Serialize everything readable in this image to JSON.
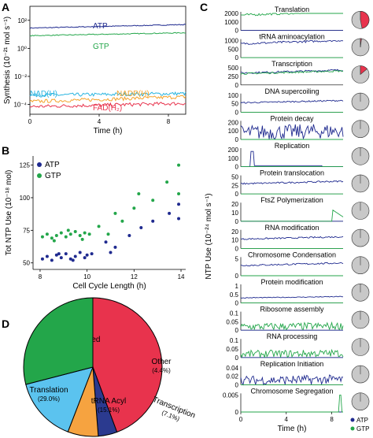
{
  "colors": {
    "atp": "#1f2a8f",
    "gtp": "#23a64a",
    "nadh": "#27b4e0",
    "nadph": "#f4a22a",
    "fadh2": "#e8334d",
    "red": "#e8334d",
    "green": "#23a64a",
    "blue": "#2b3a8f",
    "sky": "#5bc3ef",
    "orange": "#f6a340",
    "pie_gray": "#c8c8c8"
  },
  "panels": {
    "a": "A",
    "b": "B",
    "c": "C",
    "d": "D"
  },
  "chart_data": [
    {
      "id": "A",
      "type": "line",
      "scale": "log",
      "ylabel": "Synthesis (10⁻²¹ mol s⁻¹)",
      "xlabel": "Time (h)",
      "xlim": [
        0,
        9
      ],
      "ylim": [
        2e-05,
        1000
      ],
      "xticks": [
        "0",
        "4",
        "8"
      ],
      "yticks": [
        "10²",
        "10⁰",
        "10⁻²",
        "10⁻⁴"
      ],
      "series": [
        {
          "name": "ATP",
          "color_key": "atp",
          "start": 28,
          "end": 50
        },
        {
          "name": "GTP",
          "color_key": "gtp",
          "start": 8,
          "end": 13
        },
        {
          "name": "NAD(H)",
          "color_key": "nadh",
          "start": 0.00045,
          "end": 0.0006
        },
        {
          "name": "NADP(H)",
          "color_key": "nadph",
          "start": 0.00016,
          "end": 0.00035
        },
        {
          "name": "FAD(H₂)",
          "color_key": "fadh2",
          "start": 7e-05,
          "end": 0.00012
        }
      ]
    },
    {
      "id": "B",
      "type": "scatter",
      "ylabel": "Tot NTP Use (10⁻¹⁸ mol)",
      "xlabel": "Cell Cycle Length (h)",
      "xlim": [
        7.7,
        14.2
      ],
      "ylim": [
        45,
        132
      ],
      "xticks": [
        8,
        10,
        12,
        14
      ],
      "yticks": [
        50,
        75,
        100,
        125
      ],
      "series": [
        {
          "name": "ATP",
          "color_key": "atp",
          "points": [
            [
              8.1,
              53
            ],
            [
              8.3,
              55
            ],
            [
              8.5,
              52
            ],
            [
              8.7,
              56
            ],
            [
              8.9,
              54
            ],
            [
              9.1,
              57
            ],
            [
              9.3,
              53
            ],
            [
              9.5,
              55
            ],
            [
              9.7,
              58
            ],
            [
              9.9,
              54
            ],
            [
              10.0,
              56
            ],
            [
              10.2,
              57
            ],
            [
              9.4,
              52
            ],
            [
              8.8,
              57
            ],
            [
              10.8,
              66
            ],
            [
              11.0,
              58
            ],
            [
              11.2,
              62
            ],
            [
              11.8,
              71
            ],
            [
              12.3,
              77
            ],
            [
              12.8,
              82
            ],
            [
              13.5,
              88
            ],
            [
              13.9,
              95
            ],
            [
              13.9,
              84
            ]
          ]
        },
        {
          "name": "GTP",
          "color_key": "gtp",
          "points": [
            [
              8.1,
              70
            ],
            [
              8.3,
              72
            ],
            [
              8.5,
              69
            ],
            [
              8.7,
              71
            ],
            [
              8.9,
              73
            ],
            [
              9.1,
              70
            ],
            [
              9.3,
              72
            ],
            [
              9.5,
              74
            ],
            [
              9.7,
              71
            ],
            [
              9.9,
              73
            ],
            [
              10.1,
              72
            ],
            [
              8.6,
              67
            ],
            [
              9.2,
              75
            ],
            [
              9.8,
              68
            ],
            [
              10.5,
              78
            ],
            [
              10.9,
              72
            ],
            [
              11.2,
              88
            ],
            [
              11.5,
              82
            ],
            [
              12.0,
              92
            ],
            [
              12.2,
              103
            ],
            [
              12.8,
              98
            ],
            [
              13.4,
              112
            ],
            [
              13.9,
              125
            ],
            [
              13.9,
              103
            ]
          ]
        }
      ]
    },
    {
      "id": "C",
      "type": "line",
      "ylabel": "NTP Use (10⁻²⁴ mol s⁻¹)",
      "xlabel": "Time (h)",
      "xticks": [
        "0",
        "4",
        "8"
      ],
      "legend": [
        "ATP",
        "GTP"
      ],
      "rows": [
        {
          "name": "Translation",
          "yticks": [
            "2000",
            "1000",
            "0"
          ],
          "atp": 0,
          "gtp": 1800,
          "pie_atp": 0.02,
          "pie_gtp": 0.45
        },
        {
          "name": "tRNA aminoacylation",
          "yticks": [
            "1000",
            "500",
            "0"
          ],
          "atp": 820,
          "gtp": 0,
          "pie_atp": 0.02,
          "pie_gtp": 0
        },
        {
          "name": "Transcription",
          "yticks": [
            "500",
            "250",
            "0"
          ],
          "atp": 350,
          "gtp": 330,
          "pie_atp": 0.11,
          "pie_gtp": 0.03
        },
        {
          "name": "DNA supercoiling",
          "yticks": [
            "100",
            "50",
            "0"
          ],
          "atp": 55,
          "gtp": 0,
          "pie_atp": 0,
          "pie_gtp": 0
        },
        {
          "name": "Protein decay",
          "yticks": [
            "200",
            "100",
            "0"
          ],
          "atp": 80,
          "gtp": 0,
          "pie_atp": 0,
          "pie_gtp": 0
        },
        {
          "name": "Replication",
          "yticks": [
            "200",
            "100",
            "0"
          ],
          "atp": 5,
          "gtp": 0,
          "pie_atp": 0,
          "pie_gtp": 0
        },
        {
          "name": "Protein translocation",
          "yticks": [
            "50",
            "25",
            "0"
          ],
          "atp": 30,
          "gtp": 0,
          "pie_atp": 0,
          "pie_gtp": 0
        },
        {
          "name": "FtsZ Polymerization",
          "yticks": [
            "20",
            "10",
            "0"
          ],
          "atp": 0,
          "gtp": 0,
          "pie_atp": 0,
          "pie_gtp": 0
        },
        {
          "name": "RNA modification",
          "yticks": [
            "20",
            "10",
            "0"
          ],
          "atp": 11,
          "gtp": 0,
          "pie_atp": 0,
          "pie_gtp": 0
        },
        {
          "name": "Chromosome Condensation",
          "yticks": [
            "5",
            "0"
          ],
          "atp": 3,
          "gtp": 0,
          "pie_atp": 0,
          "pie_gtp": 0
        },
        {
          "name": "Protein modification",
          "yticks": [
            "1",
            "0.5",
            "0"
          ],
          "atp": 0.3,
          "gtp": 0,
          "pie_atp": 0,
          "pie_gtp": 0
        },
        {
          "name": "Ribosome assembly",
          "yticks": [
            "0.1",
            "0.05",
            "0"
          ],
          "atp": 0,
          "gtp": 0.02,
          "pie_atp": 0,
          "pie_gtp": 0
        },
        {
          "name": "RNA processing",
          "yticks": [
            "0.1",
            "0.05",
            "0"
          ],
          "atp": 0,
          "gtp": 0.02,
          "pie_atp": 0,
          "pie_gtp": 0
        },
        {
          "name": "Replication Initiation",
          "yticks": [
            "0.04",
            "0.02",
            "0"
          ],
          "atp": 0.01,
          "gtp": 0,
          "pie_atp": 0,
          "pie_gtp": 0
        },
        {
          "name": "Chromosome Segregation",
          "yticks": [
            "0.005",
            "0"
          ],
          "atp": 0,
          "gtp": 0,
          "pie_atp": 0,
          "pie_gtp": 0
        }
      ]
    },
    {
      "id": "D",
      "type": "pie",
      "slices": [
        {
          "label": "Unaccounted",
          "pct_label": "(44.3%)",
          "value": 44.3,
          "color_key": "red"
        },
        {
          "label": "Other",
          "pct_label": "(4.4%)",
          "value": 4.4,
          "color_key": "blue"
        },
        {
          "label": "Transcription",
          "pct_label": "(7.1%)",
          "value": 7.1,
          "color_key": "orange"
        },
        {
          "label": "tRNA Acyl",
          "pct_label": "(15.1%)",
          "value": 15.1,
          "color_key": "sky"
        },
        {
          "label": "Translation",
          "pct_label": "(29.0%)",
          "value": 29.0,
          "color_key": "green"
        }
      ]
    }
  ]
}
